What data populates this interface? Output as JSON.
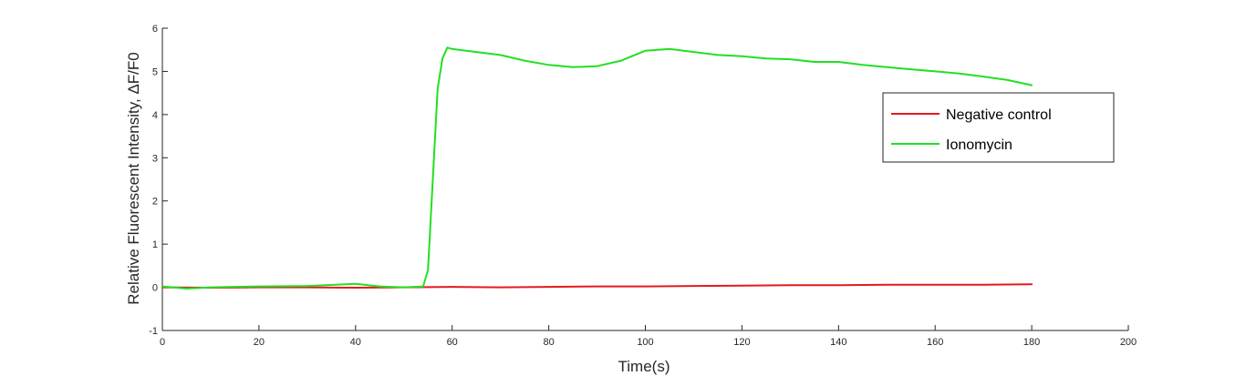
{
  "chart_data": {
    "type": "line",
    "xlabel": "Time(s)",
    "ylabel": "Relative Fluorescent Intensity, ΔF/F0",
    "xlim": [
      0,
      200
    ],
    "ylim": [
      -1,
      6
    ],
    "xticks": [
      "0",
      "20",
      "40",
      "60",
      "80",
      "100",
      "120",
      "140",
      "160",
      "180",
      "200"
    ],
    "yticks": [
      "-1",
      "0",
      "1",
      "2",
      "3",
      "4",
      "5",
      "6"
    ],
    "grid": false,
    "legend_position": "top-right",
    "series": [
      {
        "name": "Negative control",
        "color": "#e41a1c",
        "x": [
          0,
          10,
          20,
          30,
          40,
          50,
          60,
          70,
          80,
          90,
          100,
          110,
          120,
          130,
          140,
          150,
          160,
          170,
          180
        ],
        "y": [
          0.0,
          -0.01,
          0.0,
          0.0,
          -0.01,
          0.0,
          0.01,
          0.0,
          0.01,
          0.02,
          0.02,
          0.03,
          0.04,
          0.05,
          0.05,
          0.06,
          0.06,
          0.06,
          0.07
        ]
      },
      {
        "name": "Ionomycin",
        "color": "#22e022",
        "x": [
          0,
          5,
          10,
          20,
          30,
          40,
          45,
          50,
          54,
          55,
          56,
          57,
          58,
          59,
          60,
          65,
          70,
          75,
          80,
          85,
          90,
          95,
          100,
          105,
          110,
          115,
          120,
          125,
          130,
          135,
          140,
          145,
          150,
          155,
          160,
          165,
          170,
          175,
          180
        ],
        "y": [
          0.02,
          -0.03,
          0.0,
          0.02,
          0.03,
          0.08,
          0.02,
          0.0,
          0.02,
          0.4,
          2.5,
          4.6,
          5.3,
          5.55,
          5.52,
          5.45,
          5.38,
          5.25,
          5.15,
          5.1,
          5.12,
          5.25,
          5.48,
          5.52,
          5.45,
          5.38,
          5.35,
          5.3,
          5.28,
          5.22,
          5.22,
          5.15,
          5.1,
          5.05,
          5.0,
          4.95,
          4.88,
          4.8,
          4.68
        ]
      }
    ]
  }
}
